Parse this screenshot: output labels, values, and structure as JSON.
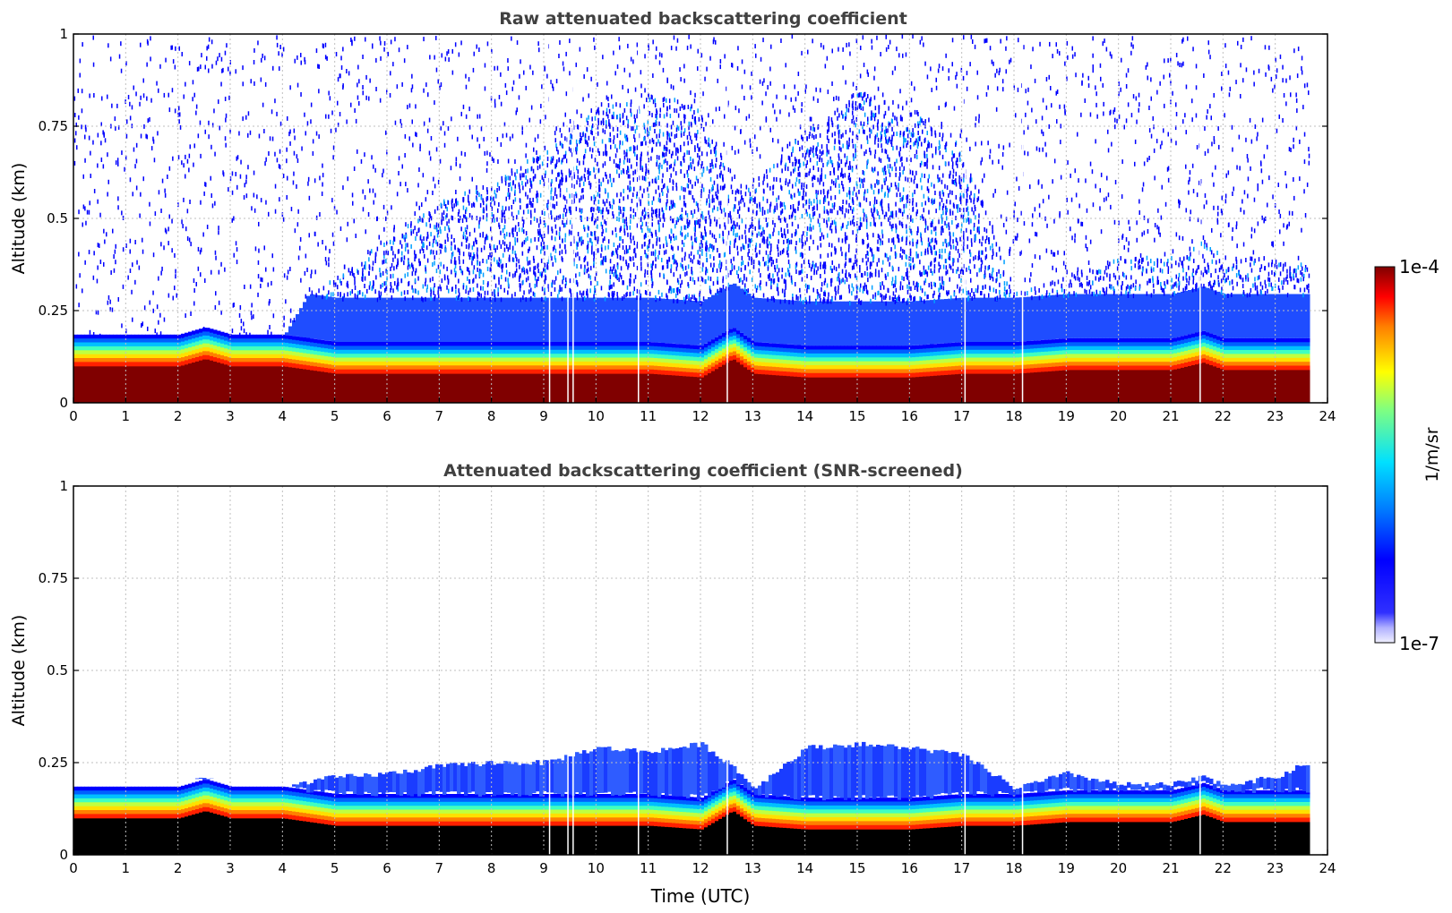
{
  "chart_data": [
    {
      "type": "heatmap",
      "title": "Raw attenuated backscattering coefficient",
      "xlabel": "",
      "ylabel": "Altitude (km)",
      "xlim": [
        0,
        24
      ],
      "ylim": [
        0,
        1
      ],
      "xticks": [
        "0",
        "1",
        "2",
        "3",
        "4",
        "5",
        "6",
        "7",
        "8",
        "9",
        "10",
        "11",
        "12",
        "13",
        "14",
        "15",
        "16",
        "17",
        "18",
        "19",
        "20",
        "21",
        "22",
        "23",
        "24"
      ],
      "yticks": [
        "0",
        "0.25",
        "0.5",
        "0.75",
        "1"
      ],
      "grid": true,
      "colormap": "jet",
      "data_end_time": 23.6,
      "dropout_times": [
        9.1,
        9.45,
        9.55,
        10.8,
        12.5,
        17.05,
        18.15,
        21.55
      ],
      "series": [
        {
          "times": [
            0,
            1,
            2,
            2.5,
            3,
            4,
            4.5,
            5,
            6,
            7,
            8,
            9,
            10,
            11,
            12,
            12.6,
            13,
            14,
            15,
            16,
            17,
            18,
            19,
            20,
            21,
            21.6,
            22,
            23,
            23.6
          ],
          "saturated_top_km": [
            0.1,
            0.1,
            0.1,
            0.12,
            0.1,
            0.1,
            0.09,
            0.08,
            0.08,
            0.08,
            0.08,
            0.08,
            0.08,
            0.08,
            0.07,
            0.12,
            0.08,
            0.07,
            0.07,
            0.07,
            0.08,
            0.08,
            0.09,
            0.09,
            0.09,
            0.11,
            0.09,
            0.09,
            0.09
          ],
          "signal_top_km": [
            0.18,
            0.18,
            0.18,
            0.2,
            0.18,
            0.18,
            0.3,
            0.35,
            0.45,
            0.55,
            0.6,
            0.7,
            0.8,
            0.85,
            0.8,
            0.6,
            0.6,
            0.75,
            0.85,
            0.8,
            0.7,
            0.3,
            0.35,
            0.4,
            0.4,
            0.45,
            0.4,
            0.4,
            0.4
          ]
        }
      ]
    },
    {
      "type": "heatmap",
      "title": "Attenuated backscattering coefficient (SNR-screened)",
      "xlabel": "Time (UTC)",
      "ylabel": "Altitude (km)",
      "xlim": [
        0,
        24
      ],
      "ylim": [
        0,
        1
      ],
      "xticks": [
        "0",
        "1",
        "2",
        "3",
        "4",
        "5",
        "6",
        "7",
        "8",
        "9",
        "10",
        "11",
        "12",
        "13",
        "14",
        "15",
        "16",
        "17",
        "18",
        "19",
        "20",
        "21",
        "22",
        "23",
        "24"
      ],
      "yticks": [
        "0",
        "0.25",
        "0.5",
        "0.75",
        "1"
      ],
      "grid": true,
      "colormap": "jet",
      "data_end_time": 23.6,
      "dropout_times": [
        9.1,
        9.45,
        9.55,
        10.8,
        12.5,
        17.05,
        18.15,
        21.55
      ],
      "series": [
        {
          "times": [
            0,
            1,
            2,
            2.5,
            3,
            4,
            4.5,
            5,
            6,
            7,
            8,
            9,
            10,
            11,
            12,
            12.6,
            13,
            14,
            15,
            16,
            17,
            18,
            19,
            20,
            21,
            21.6,
            22,
            23,
            23.6
          ],
          "saturated_top_km": [
            0.1,
            0.1,
            0.1,
            0.12,
            0.1,
            0.1,
            0.09,
            0.08,
            0.08,
            0.08,
            0.08,
            0.08,
            0.08,
            0.08,
            0.07,
            0.12,
            0.08,
            0.07,
            0.07,
            0.07,
            0.08,
            0.08,
            0.09,
            0.09,
            0.09,
            0.11,
            0.09,
            0.09,
            0.09
          ],
          "signal_top_km": [
            0.18,
            0.17,
            0.18,
            0.21,
            0.17,
            0.18,
            0.2,
            0.21,
            0.22,
            0.24,
            0.25,
            0.25,
            0.29,
            0.28,
            0.3,
            0.24,
            0.18,
            0.29,
            0.3,
            0.29,
            0.27,
            0.18,
            0.22,
            0.19,
            0.19,
            0.21,
            0.19,
            0.21,
            0.25
          ]
        }
      ]
    }
  ],
  "colorbar": {
    "max_label": "1e-4",
    "min_label": "1e-7",
    "unit_label": "1/m/sr"
  },
  "colors": {
    "title": "#404040",
    "grid": "#bfbfbf",
    "saturated_raw": "#800000",
    "saturated_screened": "#000000"
  }
}
